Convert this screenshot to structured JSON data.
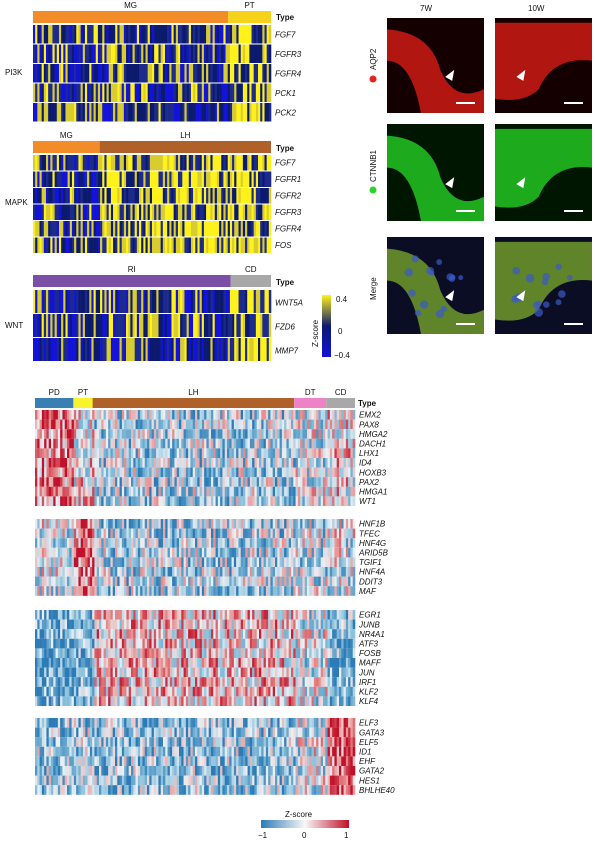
{
  "top_left": {
    "pi3k": {
      "pathway": "PI3K",
      "type_label": "Type",
      "groups": [
        {
          "name": "MG",
          "frac": 0.82,
          "color": "#f28c28"
        },
        {
          "name": "PT",
          "frac": 0.18,
          "color": "#f6d21a"
        }
      ],
      "genes": [
        "FGF7",
        "FGFR3",
        "FGFR4",
        "PCK1",
        "PCK2"
      ]
    },
    "mapk": {
      "pathway": "MAPK",
      "type_label": "Type",
      "groups": [
        {
          "name": "MG",
          "frac": 0.28,
          "color": "#f28c28"
        },
        {
          "name": "LH",
          "frac": 0.72,
          "color": "#b0612a"
        }
      ],
      "genes": [
        "FGF7",
        "FGFR1",
        "FGFR2",
        "FGFR3",
        "FGFR4",
        "FOS"
      ]
    },
    "wnt": {
      "pathway": "WNT",
      "type_label": "Type",
      "groups": [
        {
          "name": "RI",
          "frac": 0.83,
          "color": "#7b4fa6"
        },
        {
          "name": "CD",
          "frac": 0.17,
          "color": "#a8a8a8"
        }
      ],
      "genes": [
        "WNT5A",
        "FZD6",
        "MMP7"
      ]
    },
    "zscore_legend": {
      "title": "Z-score",
      "ticks": [
        "0.4",
        "0",
        "−0.4"
      ],
      "colors": {
        "high": "#fff11a",
        "mid": "#0c1a6e",
        "low": "#1212d8"
      }
    }
  },
  "micrographs": {
    "columns": [
      "7W",
      "10W"
    ],
    "rows": [
      {
        "marker": "AQP2",
        "dot_color": "#e82020"
      },
      {
        "marker": "CTNNB1",
        "dot_color": "#27d427"
      },
      {
        "marker": "Merge",
        "dot_color": ""
      }
    ]
  },
  "bottom": {
    "type_label": "Type",
    "groups": [
      {
        "name": "PD",
        "frac": 0.12,
        "color": "#3a7fb4"
      },
      {
        "name": "PT",
        "frac": 0.06,
        "color": "#f7f32c"
      },
      {
        "name": "LH",
        "frac": 0.63,
        "color": "#b0612a"
      },
      {
        "name": "DT",
        "frac": 0.1,
        "color": "#ee82c8"
      },
      {
        "name": "CD",
        "frac": 0.09,
        "color": "#a8a8a8"
      }
    ],
    "blocks": [
      [
        "EMX2",
        "PAX8",
        "HMGA2",
        "DACH1",
        "LHX1",
        "ID4",
        "HOXB3",
        "PAX2",
        "HMGA1",
        "WT1"
      ],
      [
        "HNF1B",
        "TFEC",
        "HNF4G",
        "ARID5B",
        "TGIF1",
        "HNF4A",
        "DDIT3",
        "MAF"
      ],
      [
        "EGR1",
        "JUNB",
        "NR4A1",
        "ATF3",
        "FOSB",
        "MAFF",
        "JUN",
        "IRF1",
        "KLF2",
        "KLF4"
      ],
      [
        "ELF3",
        "GATA3",
        "ELF5",
        "ID1",
        "EHF",
        "GATA2",
        "HES1",
        "BHLHE40"
      ]
    ],
    "zscore_legend": {
      "title": "Z-score",
      "ticks": [
        "−1",
        "0",
        "1"
      ],
      "colors": {
        "low": "#2c7bb6",
        "mid": "#f7f7f7",
        "high": "#c0102a"
      }
    }
  }
}
